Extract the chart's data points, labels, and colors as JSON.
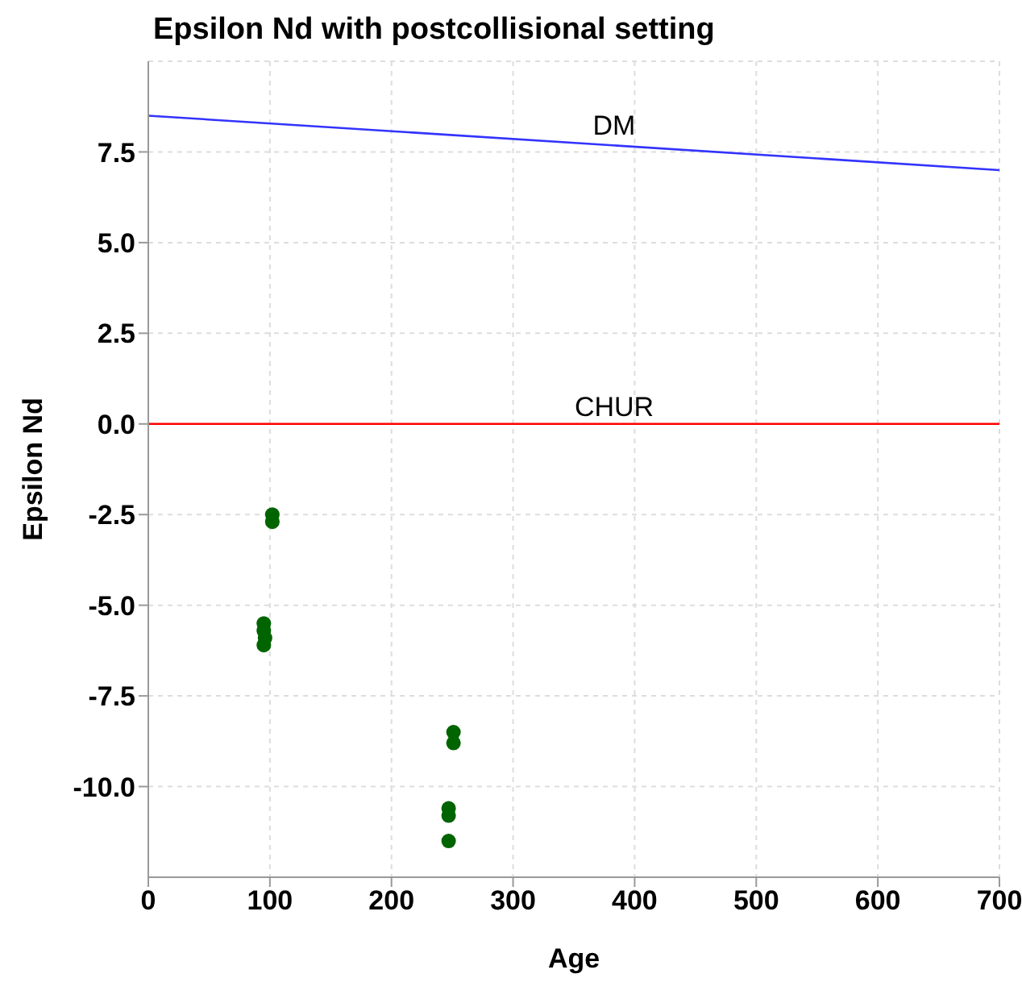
{
  "chart_data": {
    "type": "scatter",
    "title": "Epsilon Nd with postcollisional setting",
    "xlabel": "Age",
    "ylabel": "Epsilon Nd",
    "xlim": [
      0,
      700
    ],
    "xticks": [
      0,
      100,
      200,
      300,
      400,
      500,
      600,
      700
    ],
    "ylim": [
      -12.5,
      10
    ],
    "yticks": [
      {
        "value": -10,
        "label": "-10.0"
      },
      -7.5,
      {
        "value": -5,
        "label": "-5.0"
      },
      -2.5,
      {
        "value": 0,
        "label": "0.0"
      },
      2.5,
      {
        "value": 5,
        "label": "5.0"
      },
      7.5
    ],
    "grid": true,
    "legend": false,
    "series": [
      {
        "color": "#006400",
        "marker": "circle",
        "x": [
          102,
          102,
          95,
          95,
          96,
          95,
          251,
          251,
          247,
          247,
          247
        ],
        "values": [
          -2.5,
          -2.7,
          -5.5,
          -5.7,
          -5.9,
          -6.1,
          -8.5,
          -8.8,
          -10.6,
          -10.8,
          -11.5
        ]
      },
      {
        "type": "line",
        "name": "DM",
        "color": "#3333ff",
        "marker": "none",
        "x": [
          0,
          700
        ],
        "values": [
          8.5,
          7.0
        ]
      },
      {
        "type": "line",
        "name": "CHUR",
        "color": "#ff0000",
        "marker": "none",
        "x": [
          0,
          700
        ],
        "values": [
          0,
          0
        ]
      }
    ]
  }
}
